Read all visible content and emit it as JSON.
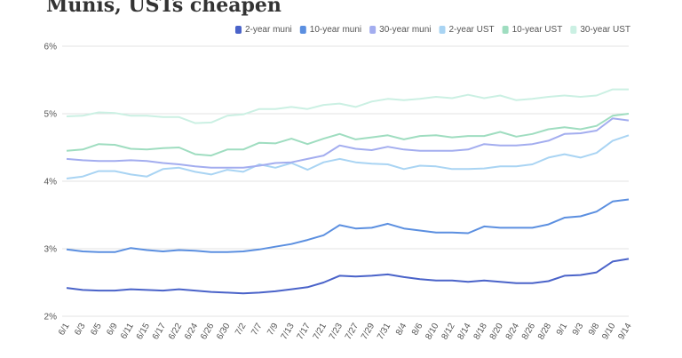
{
  "chart_data": {
    "type": "line",
    "title": "Munis, USTs cheapen",
    "categories": [
      "6/1",
      "6/3",
      "6/5",
      "6/9",
      "6/11",
      "6/15",
      "6/17",
      "6/22",
      "6/24",
      "6/26",
      "6/30",
      "7/2",
      "7/7",
      "7/9",
      "7/13",
      "7/17",
      "7/21",
      "7/23",
      "7/27",
      "7/29",
      "7/31",
      "8/4",
      "8/6",
      "8/10",
      "8/12",
      "8/14",
      "8/18",
      "8/20",
      "8/24",
      "8/26",
      "8/28",
      "9/1",
      "9/3",
      "9/8",
      "9/10",
      "9/14"
    ],
    "series": [
      {
        "name": "2-year muni",
        "color": "#4a63c9",
        "values": [
          2.42,
          2.39,
          2.38,
          2.38,
          2.4,
          2.39,
          2.38,
          2.4,
          2.38,
          2.36,
          2.35,
          2.34,
          2.35,
          2.37,
          2.4,
          2.43,
          2.5,
          2.6,
          2.59,
          2.6,
          2.62,
          2.58,
          2.55,
          2.53,
          2.53,
          2.51,
          2.53,
          2.51,
          2.49,
          2.49,
          2.52,
          2.6,
          2.61,
          2.65,
          2.81,
          2.85
        ]
      },
      {
        "name": "10-year muni",
        "color": "#5b8fe0",
        "values": [
          2.99,
          2.96,
          2.95,
          2.95,
          3.01,
          2.98,
          2.96,
          2.98,
          2.97,
          2.95,
          2.95,
          2.96,
          2.99,
          3.03,
          3.07,
          3.13,
          3.2,
          3.35,
          3.3,
          3.31,
          3.37,
          3.3,
          3.27,
          3.24,
          3.24,
          3.23,
          3.33,
          3.31,
          3.31,
          3.31,
          3.36,
          3.46,
          3.48,
          3.55,
          3.7,
          3.73
        ]
      },
      {
        "name": "30-year muni",
        "color": "#a3adef",
        "values": [
          4.33,
          4.31,
          4.3,
          4.3,
          4.31,
          4.3,
          4.27,
          4.25,
          4.22,
          4.2,
          4.2,
          4.2,
          4.23,
          4.27,
          4.28,
          4.33,
          4.38,
          4.53,
          4.48,
          4.46,
          4.51,
          4.47,
          4.45,
          4.45,
          4.45,
          4.47,
          4.55,
          4.53,
          4.53,
          4.55,
          4.6,
          4.7,
          4.71,
          4.75,
          4.93,
          4.9
        ]
      },
      {
        "name": "2-year UST",
        "color": "#a9d4f3",
        "values": [
          4.04,
          4.07,
          4.15,
          4.15,
          4.1,
          4.07,
          4.18,
          4.2,
          4.14,
          4.1,
          4.17,
          4.14,
          4.25,
          4.2,
          4.27,
          4.17,
          4.28,
          4.33,
          4.28,
          4.26,
          4.25,
          4.18,
          4.23,
          4.22,
          4.18,
          4.18,
          4.19,
          4.22,
          4.22,
          4.25,
          4.35,
          4.4,
          4.35,
          4.42,
          4.6,
          4.68
        ]
      },
      {
        "name": "10-year UST",
        "color": "#9fddc0",
        "values": [
          4.45,
          4.47,
          4.55,
          4.54,
          4.48,
          4.47,
          4.49,
          4.5,
          4.4,
          4.38,
          4.47,
          4.47,
          4.57,
          4.56,
          4.63,
          4.55,
          4.63,
          4.7,
          4.62,
          4.65,
          4.68,
          4.62,
          4.67,
          4.68,
          4.65,
          4.67,
          4.67,
          4.73,
          4.66,
          4.7,
          4.77,
          4.8,
          4.77,
          4.82,
          4.97,
          5.0
        ]
      },
      {
        "name": "30-year UST",
        "color": "#cbf0e3",
        "values": [
          4.96,
          4.97,
          5.02,
          5.01,
          4.97,
          4.97,
          4.95,
          4.95,
          4.86,
          4.87,
          4.97,
          4.99,
          5.07,
          5.07,
          5.1,
          5.07,
          5.13,
          5.15,
          5.1,
          5.18,
          5.22,
          5.2,
          5.22,
          5.25,
          5.23,
          5.28,
          5.23,
          5.27,
          5.2,
          5.22,
          5.25,
          5.27,
          5.25,
          5.27,
          5.36,
          5.36
        ]
      }
    ],
    "ylim": [
      2,
      6
    ],
    "yticks": [
      {
        "value": 2,
        "label": "2%"
      },
      {
        "value": 3,
        "label": "3%"
      },
      {
        "value": 4,
        "label": "4%"
      },
      {
        "value": 5,
        "label": "5%"
      },
      {
        "value": 6,
        "label": "6%"
      }
    ],
    "grid": true
  }
}
